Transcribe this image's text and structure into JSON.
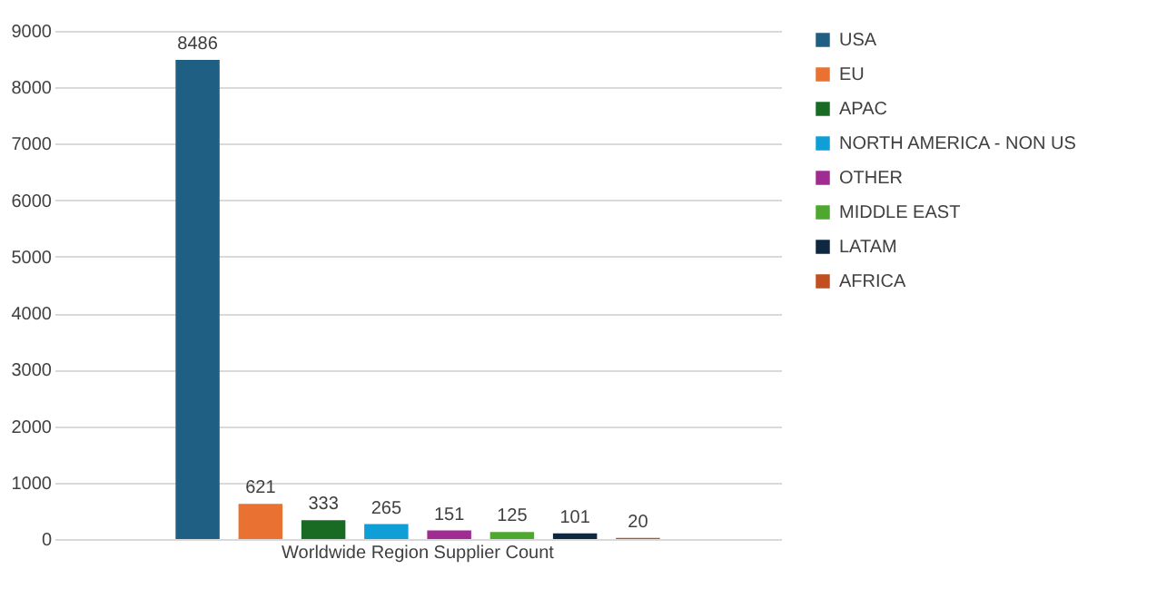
{
  "chart_data": {
    "type": "bar",
    "categories": [
      "Worldwide Region Supplier Count"
    ],
    "series": [
      {
        "name": "USA",
        "color": "#1f5f84",
        "values": [
          8486
        ]
      },
      {
        "name": "EU",
        "color": "#e97132",
        "values": [
          621
        ]
      },
      {
        "name": "APAC",
        "color": "#196b24",
        "values": [
          333
        ]
      },
      {
        "name": "NORTH AMERICA - NON US",
        "color": "#0f9ed5",
        "values": [
          265
        ]
      },
      {
        "name": "OTHER",
        "color": "#a02b93",
        "values": [
          151
        ]
      },
      {
        "name": "MIDDLE EAST",
        "color": "#4ea72e",
        "values": [
          125
        ]
      },
      {
        "name": "LATAM",
        "color": "#0e2841",
        "values": [
          101
        ]
      },
      {
        "name": "AFRICA",
        "color": "#c0501f",
        "values": [
          20
        ]
      }
    ],
    "ylim": [
      0,
      9000
    ],
    "yticks": [
      0,
      1000,
      2000,
      3000,
      4000,
      5000,
      6000,
      7000,
      8000,
      9000
    ],
    "grid": "y",
    "legend": "right",
    "data_labels": true
  }
}
